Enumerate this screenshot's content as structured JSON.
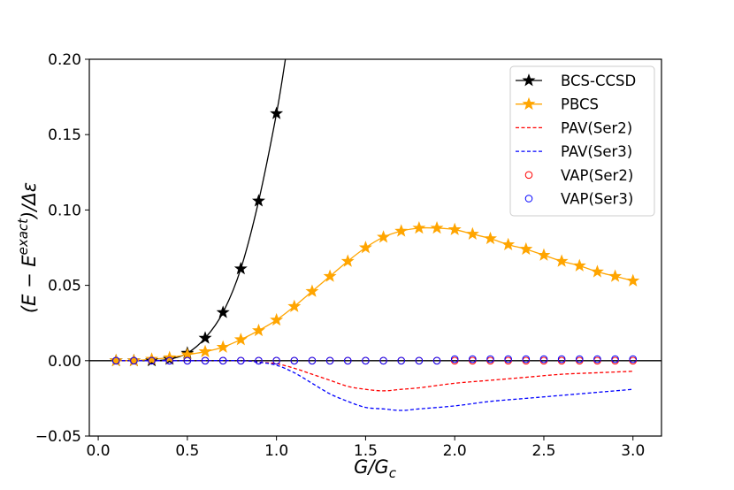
{
  "chart_data": {
    "type": "line",
    "xlabel": "G/G_c",
    "xlabel_main": "G/G",
    "xlabel_sub": "c",
    "ylabel": "(E − E^exact)/Δε",
    "ylabel_pre": "(E − E",
    "ylabel_sup": "exact",
    "ylabel_post": ")/Δε",
    "xlim": [
      -0.05,
      3.16
    ],
    "ylim": [
      -0.05,
      0.2
    ],
    "xticks": [
      0.0,
      0.5,
      1.0,
      1.5,
      2.0,
      2.5,
      3.0
    ],
    "xtick_labels": [
      "0.0",
      "0.5",
      "1.0",
      "1.5",
      "2.0",
      "2.5",
      "3.0"
    ],
    "yticks": [
      -0.05,
      0.0,
      0.05,
      0.1,
      0.15,
      0.2
    ],
    "ytick_labels": [
      "−0.05",
      "0.00",
      "0.05",
      "0.10",
      "0.15",
      "0.20"
    ],
    "zero_line": true,
    "grid": false,
    "legend_position": "top-right",
    "series": [
      {
        "name": "BCS-CCSD",
        "color": "#000000",
        "style": "solid-star",
        "x": [
          0.1,
          0.2,
          0.3,
          0.4,
          0.5,
          0.6,
          0.7,
          0.8,
          0.9,
          1.0,
          1.05
        ],
        "y": [
          0.0,
          0.0,
          0.0,
          0.001,
          0.005,
          0.015,
          0.032,
          0.061,
          0.106,
          0.164,
          0.2
        ],
        "markers": 10
      },
      {
        "name": "PBCS",
        "color": "#ffa500",
        "style": "solid-star",
        "x": [
          0.1,
          0.2,
          0.3,
          0.4,
          0.5,
          0.6,
          0.7,
          0.8,
          0.9,
          1.0,
          1.1,
          1.2,
          1.3,
          1.4,
          1.5,
          1.6,
          1.7,
          1.8,
          1.9,
          2.0,
          2.1,
          2.2,
          2.3,
          2.4,
          2.5,
          2.6,
          2.7,
          2.8,
          2.9,
          3.0
        ],
        "y": [
          0.0,
          0.0,
          0.001,
          0.002,
          0.004,
          0.006,
          0.009,
          0.014,
          0.02,
          0.027,
          0.036,
          0.046,
          0.056,
          0.066,
          0.075,
          0.082,
          0.086,
          0.088,
          0.088,
          0.087,
          0.084,
          0.081,
          0.077,
          0.074,
          0.07,
          0.066,
          0.063,
          0.059,
          0.056,
          0.053
        ]
      },
      {
        "name": "PAV(Ser2)",
        "color": "#ff0000",
        "style": "dashed",
        "x": [
          0.1,
          0.5,
          0.8,
          0.9,
          1.0,
          1.1,
          1.2,
          1.3,
          1.4,
          1.5,
          1.6,
          1.7,
          1.8,
          2.0,
          2.2,
          2.4,
          2.6,
          2.8,
          3.0
        ],
        "y": [
          0.0,
          0.0,
          0.0,
          -0.001,
          -0.002,
          -0.005,
          -0.009,
          -0.013,
          -0.017,
          -0.019,
          -0.02,
          -0.019,
          -0.018,
          -0.015,
          -0.013,
          -0.011,
          -0.009,
          -0.008,
          -0.007
        ]
      },
      {
        "name": "PAV(Ser3)",
        "color": "#0000ff",
        "style": "dashed",
        "x": [
          0.1,
          0.5,
          0.8,
          0.9,
          1.0,
          1.1,
          1.2,
          1.3,
          1.4,
          1.5,
          1.6,
          1.7,
          1.8,
          2.0,
          2.2,
          2.4,
          2.6,
          2.8,
          3.0
        ],
        "y": [
          0.0,
          0.0,
          0.0,
          -0.001,
          -0.003,
          -0.008,
          -0.015,
          -0.022,
          -0.027,
          -0.031,
          -0.032,
          -0.033,
          -0.032,
          -0.03,
          -0.027,
          -0.025,
          -0.023,
          -0.021,
          -0.019
        ]
      },
      {
        "name": "VAP(Ser2)",
        "color": "#ff0000",
        "style": "open-circle",
        "x": [
          0.1,
          0.2,
          0.3,
          0.4,
          0.5,
          0.6,
          0.7,
          0.8,
          0.9,
          1.0,
          1.1,
          1.2,
          1.3,
          1.4,
          1.5,
          1.6,
          1.7,
          1.8,
          1.9,
          2.0,
          2.1,
          2.2,
          2.3,
          2.4,
          2.5,
          2.6,
          2.7,
          2.8,
          2.9,
          3.0
        ],
        "y": [
          0.0,
          0.0,
          0.0,
          0.0,
          0.0,
          0.0,
          0.0,
          0.0,
          0.0,
          0.0,
          0.0,
          0.0,
          0.0,
          0.0,
          0.0,
          0.0,
          0.0,
          0.0,
          0.0,
          0.0,
          0.0,
          0.0,
          0.0,
          0.0,
          0.0,
          0.0,
          0.0,
          0.0,
          0.0,
          0.0
        ]
      },
      {
        "name": "VAP(Ser3)",
        "color": "#0000ff",
        "style": "open-circle",
        "x": [
          0.1,
          0.2,
          0.3,
          0.4,
          0.5,
          0.6,
          0.7,
          0.8,
          0.9,
          1.0,
          1.1,
          1.2,
          1.3,
          1.4,
          1.5,
          1.6,
          1.7,
          1.8,
          1.9,
          2.0,
          2.1,
          2.2,
          2.3,
          2.4,
          2.5,
          2.6,
          2.7,
          2.8,
          2.9,
          3.0
        ],
        "y": [
          0.0,
          0.0,
          0.0,
          0.0,
          0.0,
          0.0,
          0.0,
          0.0,
          0.0,
          0.0,
          0.0,
          0.0,
          0.0,
          0.0,
          0.0,
          0.0,
          0.0,
          0.0,
          0.0,
          0.001,
          0.001,
          0.001,
          0.001,
          0.001,
          0.001,
          0.001,
          0.001,
          0.001,
          0.001,
          0.001
        ]
      }
    ]
  }
}
